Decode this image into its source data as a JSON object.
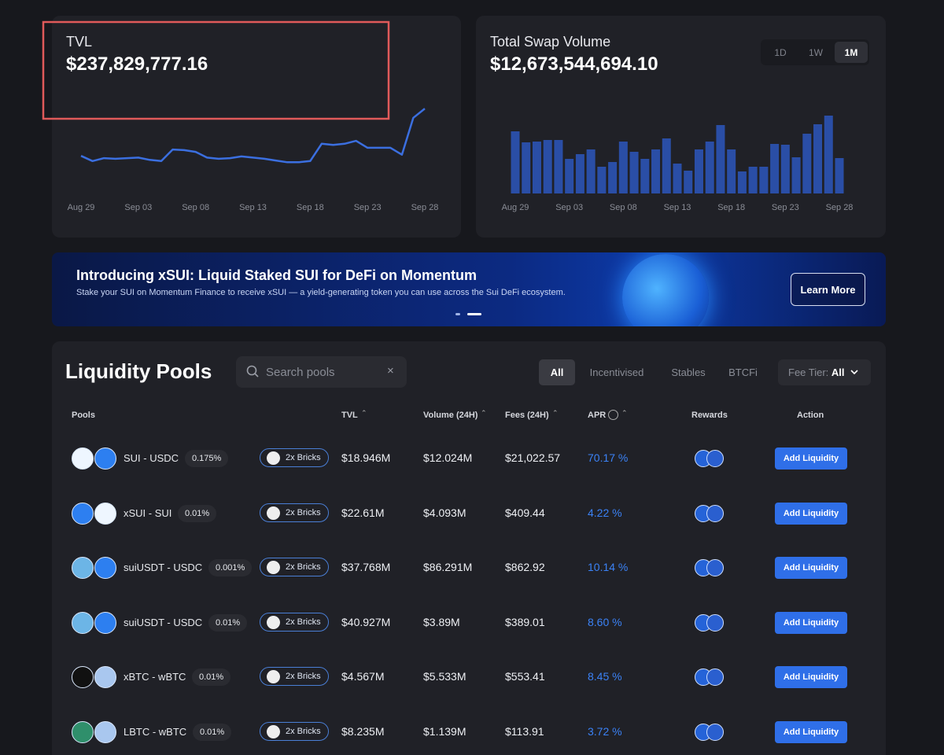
{
  "tvl_card": {
    "label": "TVL",
    "value": "$237,829,777.16"
  },
  "swap_card": {
    "label": "Total Swap Volume",
    "value": "$12,673,544,694.10",
    "ranges": [
      "1D",
      "1W",
      "1M"
    ],
    "active_range": 2
  },
  "chart_data": [
    {
      "type": "line",
      "color": "#3b6fe0",
      "categories": [
        "Aug 29",
        null,
        null,
        null,
        null,
        "Sep 03",
        null,
        null,
        null,
        null,
        "Sep 08",
        null,
        null,
        null,
        null,
        "Sep 13",
        null,
        null,
        null,
        null,
        "Sep 18",
        null,
        null,
        null,
        null,
        "Sep 23",
        null,
        null,
        null,
        null,
        "Sep 28"
      ],
      "values": [
        157,
        148,
        153,
        152,
        153,
        154,
        150,
        148,
        168,
        167,
        164,
        154,
        152,
        153,
        156,
        154,
        152,
        149,
        146,
        146,
        148,
        178,
        176,
        178,
        183,
        171,
        171,
        171,
        159,
        223,
        239
      ],
      "ylim": [
        100,
        250
      ]
    },
    {
      "type": "bar",
      "color": "#2a4ea6",
      "categories": [
        "Aug 29",
        null,
        null,
        null,
        null,
        "Sep 03",
        null,
        null,
        null,
        null,
        "Sep 08",
        null,
        null,
        null,
        null,
        "Sep 13",
        null,
        null,
        null,
        null,
        "Sep 18",
        null,
        null,
        null,
        null,
        "Sep 23",
        null,
        null,
        null,
        null,
        "Sep 28"
      ],
      "values": [
        79,
        65,
        66,
        68,
        68,
        44,
        50,
        56,
        34,
        40,
        66,
        53,
        44,
        56,
        70,
        38,
        29,
        56,
        66,
        87,
        56,
        28,
        34,
        34,
        63,
        62,
        46,
        76,
        88,
        99,
        45
      ],
      "ylim": [
        0,
        100
      ]
    }
  ],
  "banner": {
    "title": "Introducing xSUI: Liquid Staked SUI for DeFi on Momentum",
    "subtitle": "Stake your SUI on Momentum Finance to receive xSUI — a yield-generating token you can use across the Sui DeFi ecosystem.",
    "button": "Learn More"
  },
  "pools": {
    "title": "Liquidity Pools",
    "search_placeholder": "Search pools",
    "filters": [
      "All",
      "Incentivised",
      "Stables",
      "BTCFi"
    ],
    "active_filter": 0,
    "fee_tier_label": "Fee Tier:",
    "fee_tier_value": "All",
    "columns": [
      "Pools",
      "TVL",
      "Volume (24H)",
      "Fees (24H)",
      "APR",
      "Rewards",
      "Action"
    ],
    "rows": [
      {
        "pair": "SUI - USDC",
        "fee": "0.175%",
        "badge": "2x Bricks",
        "tvl": "$18.946M",
        "volume": "$12.024M",
        "fees": "$21,022.57",
        "apr": "70.17 %",
        "action": "Add Liquidity"
      },
      {
        "pair": "xSUI - SUI",
        "fee": "0.01%",
        "badge": "2x Bricks",
        "tvl": "$22.61M",
        "volume": "$4.093M",
        "fees": "$409.44",
        "apr": "4.22 %",
        "action": "Add Liquidity"
      },
      {
        "pair": "suiUSDT - USDC",
        "fee": "0.001%",
        "badge": "2x Bricks",
        "tvl": "$37.768M",
        "volume": "$86.291M",
        "fees": "$862.92",
        "apr": "10.14 %",
        "action": "Add Liquidity"
      },
      {
        "pair": "suiUSDT - USDC",
        "fee": "0.01%",
        "badge": "2x Bricks",
        "tvl": "$40.927M",
        "volume": "$3.89M",
        "fees": "$389.01",
        "apr": "8.60 %",
        "action": "Add Liquidity"
      },
      {
        "pair": "xBTC - wBTC",
        "fee": "0.01%",
        "badge": "2x Bricks",
        "tvl": "$4.567M",
        "volume": "$5.533M",
        "fees": "$553.41",
        "apr": "8.45 %",
        "action": "Add Liquidity"
      },
      {
        "pair": "LBTC - wBTC",
        "fee": "0.01%",
        "badge": "2x Bricks",
        "tvl": "$8.235M",
        "volume": "$1.139M",
        "fees": "$113.91",
        "apr": "3.72 %",
        "action": "Add Liquidity"
      }
    ]
  }
}
